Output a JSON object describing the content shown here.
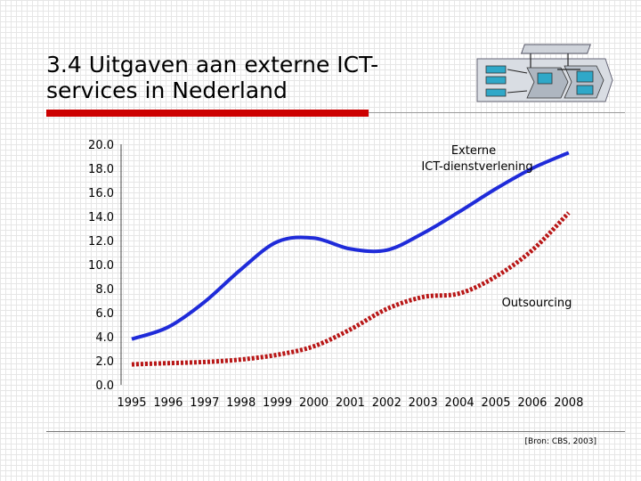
{
  "slide": {
    "title_line1": "3.4 Uitgaven aan externe ICT-",
    "title_line2": "services in Nederland",
    "source": "[Bron: CBS, 2003]",
    "accent_color": "#cc0000"
  },
  "chart_data": {
    "type": "line",
    "title": "",
    "xlabel": "",
    "ylabel": "",
    "ylim": [
      0,
      20
    ],
    "yticks": [
      "0.0",
      "2.0",
      "4.0",
      "6.0",
      "8.0",
      "10.0",
      "12.0",
      "14.0",
      "16.0",
      "18.0",
      "20.0"
    ],
    "x": [
      1995,
      1996,
      1997,
      1998,
      1999,
      2000,
      2001,
      2002,
      2003,
      2004,
      2005,
      2006,
      2008
    ],
    "x_tick_labels": [
      "1995",
      "1996",
      "1997",
      "1998",
      "1999",
      "2000",
      "2001",
      "2002",
      "2003",
      "2004",
      "2005",
      "2006",
      "2008"
    ],
    "series": [
      {
        "name": "Externe ICT-dienstverlening",
        "label_lines": [
          "Externe",
          "ICT-dienstverlening"
        ],
        "color": "#1f2bd9",
        "style": "solid",
        "values": [
          3.8,
          4.8,
          6.9,
          9.6,
          11.9,
          12.2,
          11.3,
          11.2,
          12.6,
          14.4,
          16.3,
          18.0,
          19.3
        ]
      },
      {
        "name": "Outsourcing",
        "label_lines": [
          "Outsourcing"
        ],
        "color": "#b81616",
        "style": "dotted",
        "values": [
          1.7,
          1.8,
          1.9,
          2.1,
          2.5,
          3.2,
          4.6,
          6.3,
          7.3,
          7.6,
          9.0,
          11.2,
          14.3
        ]
      }
    ]
  }
}
